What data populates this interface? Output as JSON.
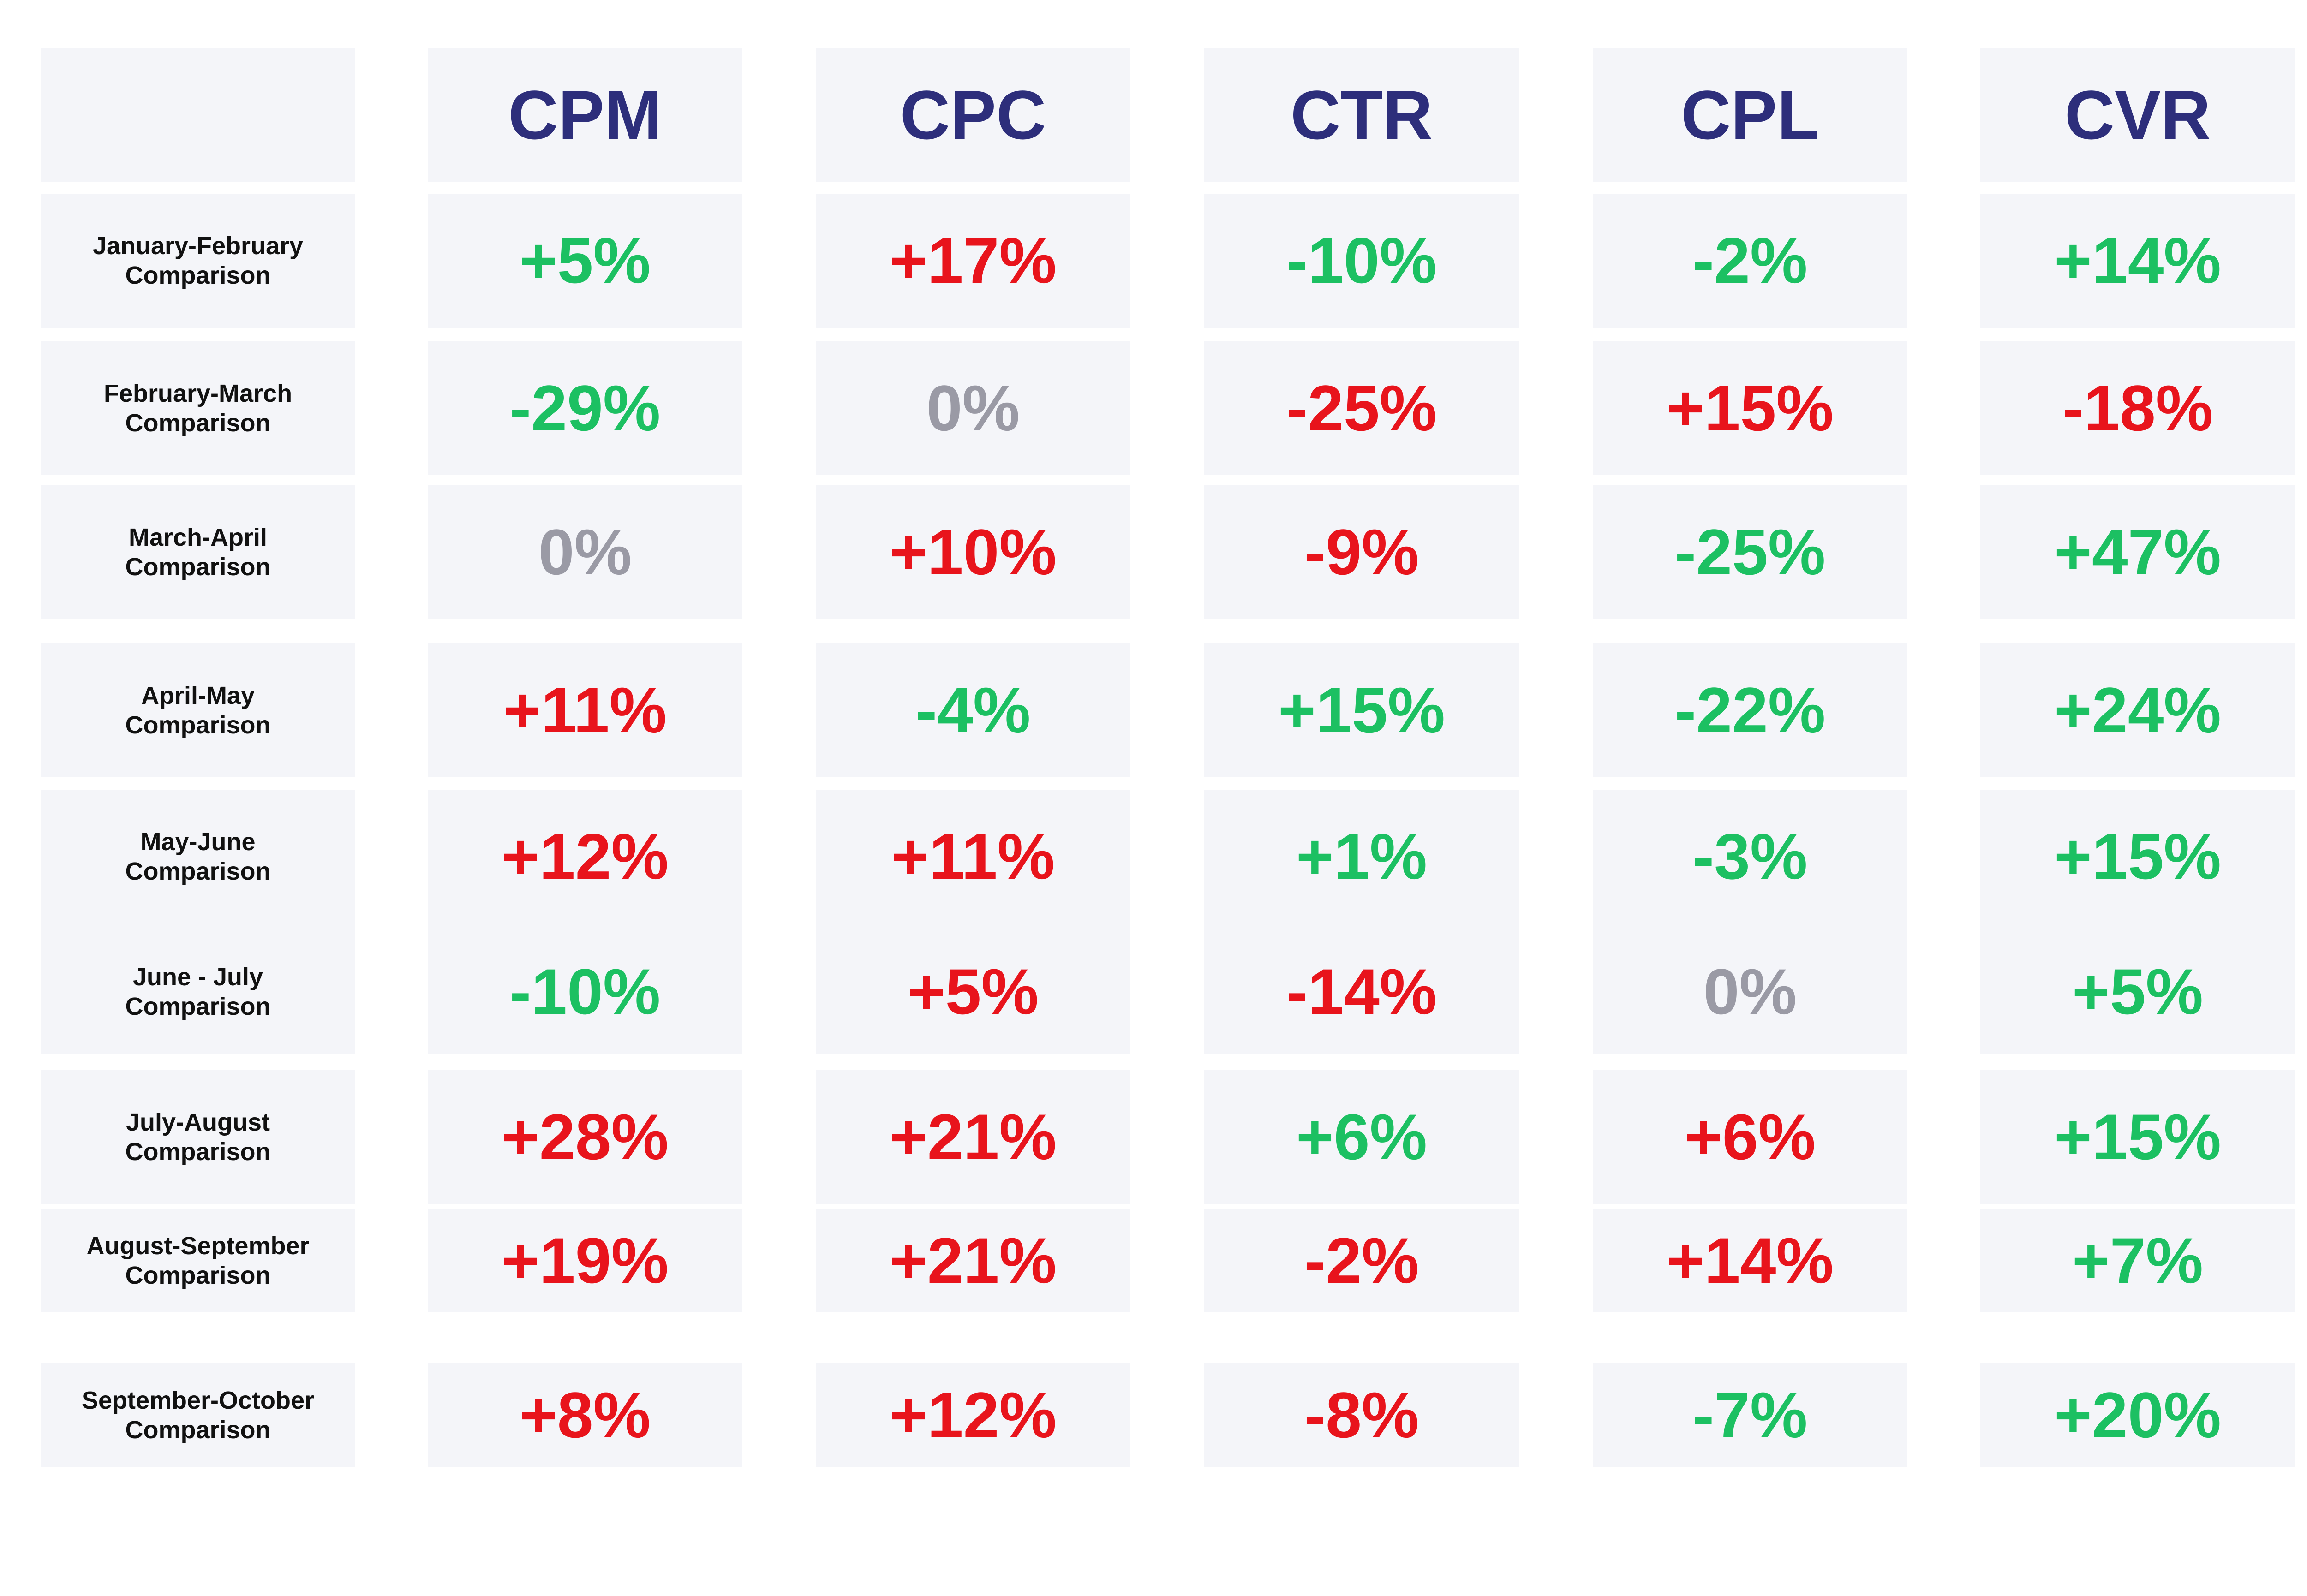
{
  "table": {
    "columns": [
      "CPM",
      "CPC",
      "CTR",
      "CPL",
      "CVR"
    ],
    "rows": [
      {
        "label": "January-February\nComparison",
        "values": [
          "+5%",
          "+17%",
          "-10%",
          "-2%",
          "+14%"
        ],
        "status": [
          "good",
          "bad",
          "good",
          "good",
          "good"
        ]
      },
      {
        "label": "February-March\nComparison",
        "values": [
          "-29%",
          "0%",
          "-25%",
          "+15%",
          "-18%"
        ],
        "status": [
          "good",
          "neutral",
          "bad",
          "bad",
          "bad"
        ]
      },
      {
        "label": "March-April\nComparison",
        "values": [
          "0%",
          "+10%",
          "-9%",
          "-25%",
          "+47%"
        ],
        "status": [
          "neutral",
          "bad",
          "bad",
          "good",
          "good"
        ]
      },
      {
        "label": "April-May\nComparison",
        "values": [
          "+11%",
          "-4%",
          "+15%",
          "-22%",
          "+24%"
        ],
        "status": [
          "bad",
          "good",
          "good",
          "good",
          "good"
        ]
      },
      {
        "label": "May-June\nComparison",
        "values": [
          "+12%",
          "+11%",
          "+1%",
          "-3%",
          "+15%"
        ],
        "status": [
          "bad",
          "bad",
          "good",
          "good",
          "good"
        ]
      },
      {
        "label": "June - July\nComparison",
        "values": [
          "-10%",
          "+5%",
          "-14%",
          "0%",
          "+5%"
        ],
        "status": [
          "good",
          "bad",
          "bad",
          "neutral",
          "good"
        ]
      },
      {
        "label": "July-August\nComparison",
        "values": [
          "+28%",
          "+21%",
          "+6%",
          "+6%",
          "+15%"
        ],
        "status": [
          "bad",
          "bad",
          "good",
          "bad",
          "good"
        ]
      },
      {
        "label": "August-September\nComparison",
        "values": [
          "+19%",
          "+21%",
          "-2%",
          "+14%",
          "+7%"
        ],
        "status": [
          "bad",
          "bad",
          "bad",
          "bad",
          "good"
        ]
      },
      {
        "label": "September-October\nComparison",
        "values": [
          "+8%",
          "+12%",
          "-8%",
          "-7%",
          "+20%"
        ],
        "status": [
          "bad",
          "bad",
          "bad",
          "good",
          "good"
        ]
      }
    ]
  },
  "colors": {
    "cell_background": "#f4f5f9",
    "header_text": "#2d2e7b",
    "label_text": "#111111",
    "good": "#1cc062",
    "bad": "#e8141c",
    "neutral": "#9a9aa5"
  }
}
